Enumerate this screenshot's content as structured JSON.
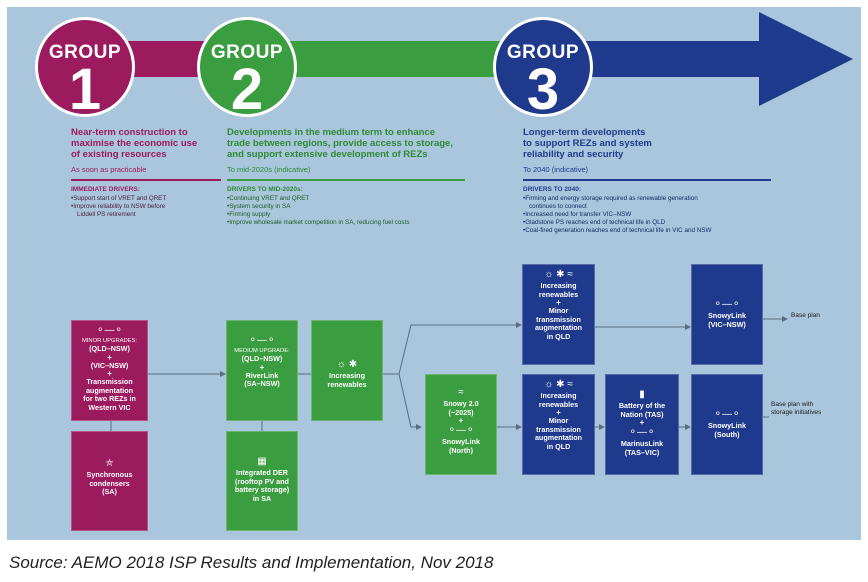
{
  "colors": {
    "group1": "#9c1a5e",
    "group2": "#3a9d3f",
    "group3": "#1f3a8c",
    "background": "#a9c6dc"
  },
  "group_word": "GROUP",
  "groups": [
    {
      "number": "1",
      "heading": [
        "Near-term construction to",
        "maximise the economic use",
        "of existing resources"
      ],
      "timing": "As soon as practicable",
      "drivers_title": "IMMEDIATE DRIVERS:",
      "drivers": [
        "Support start of VRET and QRET",
        "Improve reliability to NSW before",
        "Liddell PS retirement"
      ]
    },
    {
      "number": "2",
      "heading": [
        "Developments in the medium term to enhance",
        "trade between regions, provide access to storage,",
        "and support extensive development of REZs"
      ],
      "timing": "To mid-2020s (indicative)",
      "drivers_title": "DRIVERS TO MID-2020s:",
      "drivers": [
        "Continuing VRET and QRET",
        "System security in SA",
        "Firming supply",
        "Improve wholesale market competition in SA, reducing fuel costs"
      ]
    },
    {
      "number": "3",
      "heading": [
        "Longer-term developments",
        "to support REZs and system",
        "reliability and security"
      ],
      "timing": "To 2040 (indicative)",
      "drivers_title": "DRIVERS TO 2040:",
      "drivers": [
        "Firming and energy storage required as renewable generation",
        "continues to connect",
        "Increased need for transfer VIC–NSW",
        "Gladstone PS reaches end of technical life in QLD",
        "Coal-fired generation reaches end of technical life in VIC and NSW"
      ]
    }
  ],
  "boxes": {
    "g1_upgrades": {
      "small": [
        "MINOR UPGRADES:"
      ],
      "lines": [
        "(QLD–NSW)",
        "+",
        "(VIC–NSW)",
        "+",
        "Transmission",
        "augmentation",
        "for two REZs in",
        "Western VIC"
      ]
    },
    "g1_sync": {
      "lines": [
        "Synchronous",
        "condensers",
        "(SA)"
      ]
    },
    "g2_upgrade": {
      "small": [
        "MEDIUM UPGRADE:"
      ],
      "lines": [
        "(QLD–NSW)",
        "+",
        "RiverLink",
        "(SA–NSW)"
      ]
    },
    "g2_der": {
      "lines": [
        "Integrated DER",
        "(rooftop PV and",
        "battery storage)",
        "in SA"
      ]
    },
    "g2_renew": {
      "lines": [
        "Increasing",
        "renewables"
      ]
    },
    "snowy": {
      "lines": [
        "Snowy 2.0",
        "(~2025)",
        "+",
        "SnowyLink",
        "(North)"
      ]
    },
    "g3_top": {
      "lines": [
        "Increasing",
        "renewables",
        "+",
        "Minor",
        "transmission",
        "augmentation",
        "in QLD"
      ]
    },
    "g3_mid": {
      "lines": [
        "Increasing",
        "renewables",
        "+",
        "Minor",
        "transmission",
        "augmentation",
        "in QLD"
      ]
    },
    "battery": {
      "lines": [
        "Battery of the",
        "Nation (TAS)",
        "+",
        "MarinusLink",
        "(TAS–VIC)"
      ]
    },
    "snowy_vic": {
      "lines": [
        "SnowyLink",
        "(VIC–NSW)"
      ]
    },
    "snowy_south": {
      "lines": [
        "SnowyLink",
        "(South)"
      ]
    }
  },
  "outcomes": {
    "top": [
      "Base plan"
    ],
    "bottom": [
      "Base plan with",
      "storage initiatives"
    ]
  },
  "icons": [
    "link-icon",
    "solar-icon",
    "wind-icon",
    "shield-icon",
    "der-icon",
    "hydro-icon",
    "battery-icon"
  ],
  "caption": "Source: AEMO 2018 ISP Results and Implementation, Nov 2018"
}
